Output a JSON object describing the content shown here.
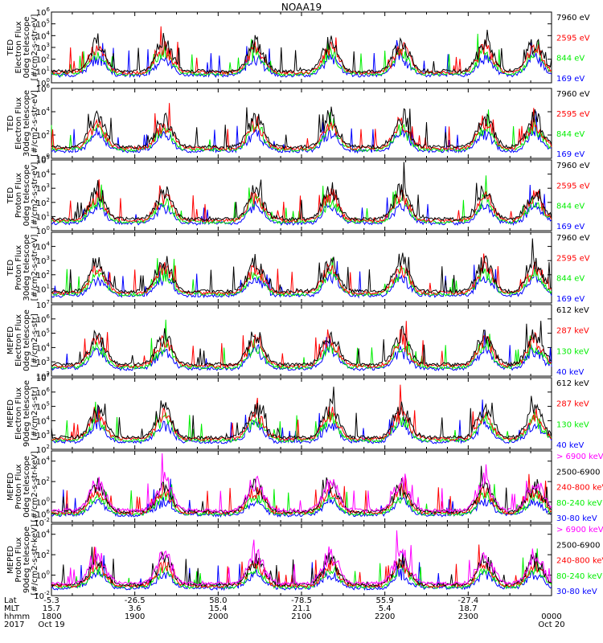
{
  "title": "NOAA19",
  "colors": {
    "black": "#000000",
    "red": "#ff0000",
    "green": "#00ee00",
    "blue": "#0000ff",
    "magenta": "#ff00ff"
  },
  "chart_data": [
    {
      "type": "line",
      "panel": 1,
      "ylabel": [
        "TED",
        "Electron Flux",
        "0deg telescope",
        "[#/cm2-s-str-eV]"
      ],
      "yscale": "log",
      "ylim": [
        1,
        1000000
      ],
      "ticks": [
        "10^0",
        "10^1",
        "10^2",
        "10^3",
        "10^4",
        "10^5",
        "10^6"
      ],
      "series": [
        {
          "name": "7960 eV",
          "color": "black"
        },
        {
          "name": "2595 eV",
          "color": "red"
        },
        {
          "name": "844 eV",
          "color": "green"
        },
        {
          "name": "169 eV",
          "color": "blue"
        }
      ]
    },
    {
      "type": "line",
      "panel": 2,
      "ylabel": [
        "TED",
        "Electron Flux",
        "30deg telescope",
        "[#/cm2-s-str-eV]"
      ],
      "yscale": "log",
      "ylim": [
        1,
        1000000
      ],
      "ticks": [
        "10^0",
        "10^2",
        "10^4",
        "10^6"
      ],
      "series": [
        {
          "name": "7960 eV",
          "color": "black"
        },
        {
          "name": "2595 eV",
          "color": "red"
        },
        {
          "name": "844 eV",
          "color": "green"
        },
        {
          "name": "169 eV",
          "color": "blue"
        }
      ]
    },
    {
      "type": "line",
      "panel": 3,
      "ylabel": [
        "TED",
        "Proton Flux",
        "0deg telescope",
        "[#/cm2-s-str-eV]"
      ],
      "yscale": "log",
      "ylim": [
        1,
        100000
      ],
      "ticks": [
        "10^0",
        "10^1",
        "10^2",
        "10^3",
        "10^4",
        "10^5"
      ],
      "series": [
        {
          "name": "7960 eV",
          "color": "black"
        },
        {
          "name": "2595 eV",
          "color": "red"
        },
        {
          "name": "844 eV",
          "color": "green"
        },
        {
          "name": "169 eV",
          "color": "blue"
        }
      ]
    },
    {
      "type": "line",
      "panel": 4,
      "ylabel": [
        "TED",
        "Proton Flux",
        "30deg telescope",
        "[#/cm2-s-str-eV]"
      ],
      "yscale": "log",
      "ylim": [
        1,
        100000
      ],
      "ticks": [
        "10^1",
        "10^2",
        "10^3",
        "10^4"
      ],
      "series": [
        {
          "name": "7960 eV",
          "color": "black"
        },
        {
          "name": "2595 eV",
          "color": "red"
        },
        {
          "name": "844 eV",
          "color": "green"
        },
        {
          "name": "169 eV",
          "color": "blue"
        }
      ]
    },
    {
      "type": "line",
      "panel": 5,
      "ylabel": [
        "MEPED",
        "Electron Flux",
        "0deg telescope",
        "[#/cm2-s-str]"
      ],
      "yscale": "log",
      "ylim": [
        100,
        10000000
      ],
      "ticks": [
        "10^2",
        "10^3",
        "10^4",
        "10^5",
        "10^6",
        "10^7"
      ],
      "series": [
        {
          "name": "612 keV",
          "color": "black"
        },
        {
          "name": "287 keV",
          "color": "red"
        },
        {
          "name": "130 keV",
          "color": "green"
        },
        {
          "name": "40 keV",
          "color": "blue"
        }
      ]
    },
    {
      "type": "line",
      "panel": 6,
      "ylabel": [
        "MEPED",
        "Electron Flux",
        "90deg telescope",
        "[#/cm2-s-str]"
      ],
      "yscale": "log",
      "ylim": [
        100,
        10000000
      ],
      "ticks": [
        "10^2",
        "10^3",
        "10^4",
        "10^5",
        "10^6",
        "10^7"
      ],
      "series": [
        {
          "name": "612 keV",
          "color": "black"
        },
        {
          "name": "287 keV",
          "color": "red"
        },
        {
          "name": "130 keV",
          "color": "green"
        },
        {
          "name": "40 keV",
          "color": "blue"
        }
      ]
    },
    {
      "type": "line",
      "panel": 7,
      "ylabel": [
        "MEPED",
        "Proton Flux",
        "0deg telescope",
        "[#/cm2-s-str-keV]"
      ],
      "yscale": "log",
      "ylim": [
        0.01,
        100000
      ],
      "ticks": [
        "10^-2",
        "10^0",
        "10^2",
        "10^4"
      ],
      "series": [
        {
          "name": "> 6900 keV",
          "color": "magenta"
        },
        {
          "name": "2500-6900",
          "color": "black"
        },
        {
          "name": "240-800 keV",
          "color": "red"
        },
        {
          "name": "80-240 keV",
          "color": "green"
        },
        {
          "name": "30-80 keV",
          "color": "blue"
        }
      ]
    },
    {
      "type": "line",
      "panel": 8,
      "ylabel": [
        "MEPED",
        "Proton Flux",
        "90deg telescope",
        "[#/cm2-s-str-keV]"
      ],
      "yscale": "log",
      "ylim": [
        0.01,
        100000
      ],
      "ticks": [
        "10^-2",
        "10^0",
        "10^2",
        "10^4",
        "10^6"
      ],
      "series": [
        {
          "name": "> 6900 keV",
          "color": "magenta"
        },
        {
          "name": "2500-6900",
          "color": "black"
        },
        {
          "name": "240-800 keV",
          "color": "red"
        },
        {
          "name": "80-240 keV",
          "color": "green"
        },
        {
          "name": "30-80 keV",
          "color": "blue"
        }
      ]
    }
  ],
  "xaxis": {
    "row_labels": [
      "Lat",
      "MLT",
      "hhmm",
      "2017"
    ],
    "xlim_hhmm": [
      "1800",
      "2400"
    ],
    "columns": [
      {
        "hour": 0,
        "lat": "-5.3",
        "mlt": "15.7",
        "hhmm": "1800",
        "date": "Oct 19"
      },
      {
        "hour": 1,
        "lat": "-26.5",
        "mlt": "3.6",
        "hhmm": "1900",
        "date": ""
      },
      {
        "hour": 2,
        "lat": "58.0",
        "mlt": "15.4",
        "hhmm": "2000",
        "date": ""
      },
      {
        "hour": 3,
        "lat": "-78.5",
        "mlt": "21.1",
        "hhmm": "2100",
        "date": ""
      },
      {
        "hour": 4,
        "lat": "55.9",
        "mlt": "5.4",
        "hhmm": "2200",
        "date": ""
      },
      {
        "hour": 5,
        "lat": "-27.4",
        "mlt": "18.7",
        "hhmm": "2300",
        "date": ""
      },
      {
        "hour": 6,
        "lat": "",
        "mlt": "",
        "hhmm": "0000",
        "date": "Oct 20"
      }
    ]
  }
}
